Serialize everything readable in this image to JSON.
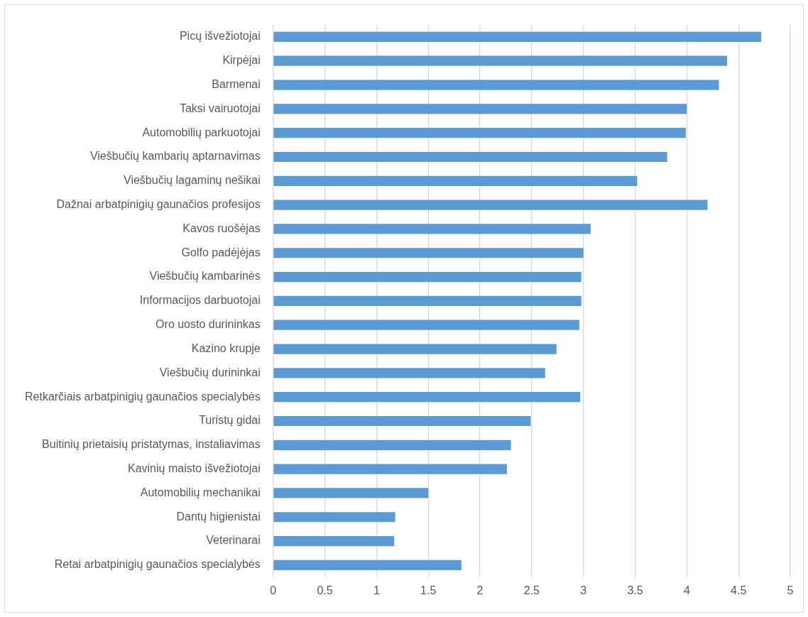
{
  "chart_data": {
    "type": "bar",
    "orientation": "horizontal",
    "categories": [
      "Picų išvežiotojai",
      "Kirpėjai",
      "Barmenai",
      "Taksi vairuotojai",
      "Automobilių parkuotojai",
      "Viešbučių kambarių aptarnavimas",
      "Viešbučių lagaminų nešikai",
      "Dažnai arbatpinigių gaunačios profesijos",
      "Kavos ruošėjas",
      "Golfo padėjėjas",
      "Viešbučių kambarinės",
      "Informacijos darbuotojai",
      "Oro uosto durininkas",
      "Kazino krupje",
      "Viešbučių durininkai",
      "Retkarčiais arbatpinigių gaunačios specialybės",
      "Turistų gidai",
      "Buitinių prietaisių pristatymas, instaliavimas",
      "Kavinių maisto išvežiotojai",
      "Automobilių mechanikai",
      "Dantų higienistai",
      "Veterinarai",
      "Retai arbatpinigių gaunačios specialybės"
    ],
    "values": [
      4.72,
      4.39,
      4.31,
      4.0,
      3.99,
      3.81,
      3.52,
      4.2,
      3.07,
      3.0,
      2.98,
      2.98,
      2.96,
      2.74,
      2.63,
      2.97,
      2.49,
      2.3,
      2.26,
      1.5,
      1.18,
      1.17,
      1.82
    ],
    "color": "#5b9bd5",
    "xlim": [
      0,
      5
    ],
    "xticks": [
      0,
      0.5,
      1,
      1.5,
      2,
      2.5,
      3,
      3.5,
      4,
      4.5,
      5
    ],
    "grid": "x",
    "legend": false
  }
}
